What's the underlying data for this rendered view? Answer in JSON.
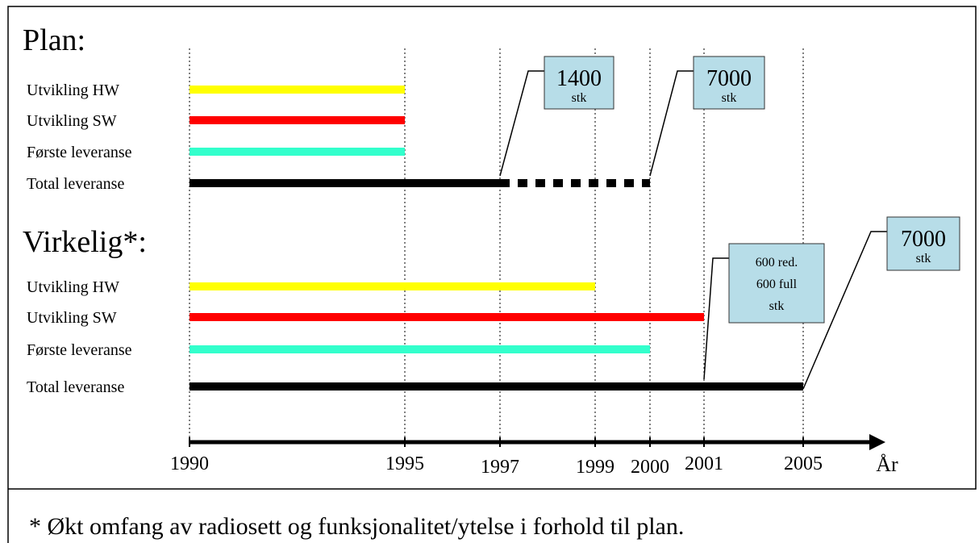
{
  "plan": {
    "title": "Plan:",
    "rows": [
      {
        "label": "Utvikling HW",
        "color": "#ffff00",
        "start": 1990,
        "end": 1995
      },
      {
        "label": "Utvikling SW",
        "color": "#ff0000",
        "start": 1990,
        "end": 1995
      },
      {
        "label": "Første leveranse",
        "color": "#33ffcc",
        "start": 1990,
        "end": 1995
      },
      {
        "label": "Total leveranse",
        "color": "#000000",
        "start": 1990,
        "end": 1997,
        "dashed_end": 2000
      }
    ]
  },
  "actual": {
    "title": "Virkelig*:",
    "rows": [
      {
        "label": "Utvikling HW",
        "color": "#ffff00",
        "start": 1990,
        "end": 1999
      },
      {
        "label": "Utvikling SW",
        "color": "#ff0000",
        "start": 1990,
        "end": 2001
      },
      {
        "label": "Første leveranse",
        "color": "#33ffcc",
        "start": 1990,
        "end": 2000
      },
      {
        "label": "Total leveranse",
        "color": "#000000",
        "start": 1990,
        "end": 2005
      }
    ]
  },
  "callouts": [
    {
      "year": 1997,
      "lines": [
        "1400",
        "stk"
      ]
    },
    {
      "year": 2000,
      "lines": [
        "7000",
        "stk"
      ]
    },
    {
      "year": 2001,
      "lines": [
        "600 red.",
        "600 full",
        "stk"
      ]
    },
    {
      "year": 2005,
      "lines": [
        "7000",
        "stk"
      ]
    }
  ],
  "axis": {
    "ticks": [
      1990,
      1995,
      1997,
      1999,
      2000,
      2001,
      2005
    ],
    "unit_label": "År"
  },
  "footnote": "* Økt omfang av radiosett og funksjonalitet/ytelse i forhold til plan."
}
